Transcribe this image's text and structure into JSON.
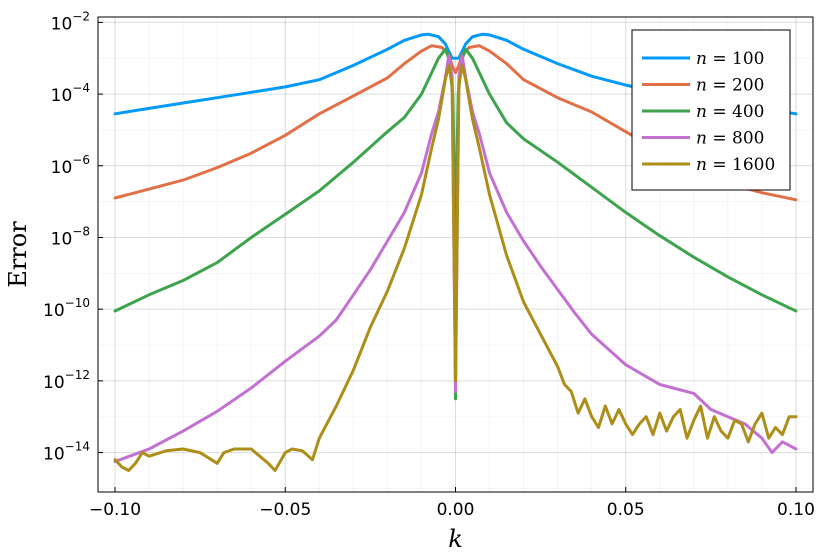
{
  "chart_data": {
    "type": "line",
    "xlabel": "k",
    "ylabel": "Error",
    "yscale": "log10",
    "xlim": [
      -0.105,
      0.105
    ],
    "ylim_log10": [
      -15.1,
      -1.85
    ],
    "x_ticks": [
      -0.1,
      -0.05,
      0.0,
      0.05,
      0.1
    ],
    "x_tick_labels": [
      "−0.10",
      "−0.05",
      "0.00",
      "0.05",
      "0.10"
    ],
    "y_ticks_log10": [
      -2,
      -4,
      -6,
      -8,
      -10,
      -12,
      -14
    ],
    "y_tick_labels": [
      {
        "base": "10",
        "exp": "−2"
      },
      {
        "base": "10",
        "exp": "−4"
      },
      {
        "base": "10",
        "exp": "−6"
      },
      {
        "base": "10",
        "exp": "−8"
      },
      {
        "base": "10",
        "exp": "−10"
      },
      {
        "base": "10",
        "exp": "−12"
      },
      {
        "base": "10",
        "exp": "−14"
      }
    ],
    "grid": true,
    "legend_position": "top-right",
    "series": [
      {
        "name": "n = 100",
        "legend_var": "n",
        "legend_value": "100",
        "color": "#009AFA",
        "x": [
          -0.1,
          -0.09,
          -0.08,
          -0.07,
          -0.06,
          -0.05,
          -0.04,
          -0.03,
          -0.02,
          -0.015,
          -0.01,
          -0.008,
          -0.005,
          -0.003,
          -0.001,
          0.0,
          0.001,
          0.003,
          0.005,
          0.008,
          0.01,
          0.015,
          0.02,
          0.03,
          0.04,
          0.05,
          0.06,
          0.07,
          0.08,
          0.09,
          0.1
        ],
        "log10_y": [
          -4.55,
          -4.4,
          -4.25,
          -4.1,
          -3.95,
          -3.8,
          -3.6,
          -3.2,
          -2.75,
          -2.5,
          -2.35,
          -2.33,
          -2.4,
          -2.6,
          -3.0,
          -3.0,
          -3.0,
          -2.6,
          -2.4,
          -2.33,
          -2.35,
          -2.5,
          -2.75,
          -3.15,
          -3.5,
          -3.75,
          -3.95,
          -4.1,
          -4.25,
          -4.4,
          -4.55
        ]
      },
      {
        "name": "n = 200",
        "legend_var": "n",
        "legend_value": "200",
        "color": "#E26F46",
        "x": [
          -0.1,
          -0.09,
          -0.08,
          -0.07,
          -0.06,
          -0.05,
          -0.04,
          -0.03,
          -0.02,
          -0.015,
          -0.01,
          -0.007,
          -0.004,
          -0.002,
          -0.001,
          0.0,
          0.001,
          0.002,
          0.004,
          0.007,
          0.01,
          0.015,
          0.02,
          0.03,
          0.04,
          0.05,
          0.06,
          0.07,
          0.08,
          0.09,
          0.1
        ],
        "log10_y": [
          -6.9,
          -6.65,
          -6.4,
          -6.05,
          -5.65,
          -5.15,
          -4.55,
          -4.05,
          -3.55,
          -3.15,
          -2.8,
          -2.65,
          -2.7,
          -2.9,
          -3.2,
          -3.4,
          -3.2,
          -2.9,
          -2.7,
          -2.65,
          -2.8,
          -3.15,
          -3.6,
          -4.1,
          -4.5,
          -5.05,
          -5.6,
          -6.1,
          -6.5,
          -6.75,
          -6.95
        ]
      },
      {
        "name": "n = 400",
        "legend_var": "n",
        "legend_value": "400",
        "color": "#3DA44D",
        "x": [
          -0.1,
          -0.09,
          -0.08,
          -0.07,
          -0.06,
          -0.05,
          -0.04,
          -0.03,
          -0.02,
          -0.015,
          -0.01,
          -0.007,
          -0.005,
          -0.003,
          -0.002,
          -0.0008,
          -0.0003,
          0.0,
          0.0003,
          0.0008,
          0.002,
          0.003,
          0.005,
          0.007,
          0.01,
          0.015,
          0.02,
          0.03,
          0.04,
          0.05,
          0.06,
          0.07,
          0.08,
          0.09,
          0.1
        ],
        "log10_y": [
          -10.05,
          -9.6,
          -9.2,
          -8.7,
          -8.0,
          -7.35,
          -6.7,
          -5.9,
          -5.05,
          -4.65,
          -4.0,
          -3.4,
          -3.0,
          -2.75,
          -3.0,
          -4.0,
          -6.5,
          -12.5,
          -6.5,
          -4.0,
          -3.0,
          -2.75,
          -3.0,
          -3.4,
          -4.0,
          -4.8,
          -5.25,
          -5.9,
          -6.6,
          -7.3,
          -7.95,
          -8.55,
          -9.1,
          -9.6,
          -10.05
        ]
      },
      {
        "name": "n = 800",
        "legend_var": "n",
        "legend_value": "800",
        "color": "#C271D2",
        "x": [
          -0.1,
          -0.09,
          -0.08,
          -0.07,
          -0.06,
          -0.05,
          -0.04,
          -0.035,
          -0.03,
          -0.025,
          -0.02,
          -0.015,
          -0.01,
          -0.007,
          -0.005,
          -0.003,
          -0.002,
          -0.001,
          0.0,
          0.001,
          0.002,
          0.003,
          0.005,
          0.007,
          0.01,
          0.015,
          0.02,
          0.025,
          0.03,
          0.035,
          0.04,
          0.05,
          0.06,
          0.07,
          0.075,
          0.08,
          0.085,
          0.09,
          0.093,
          0.096,
          0.1
        ],
        "log10_y": [
          -14.25,
          -13.9,
          -13.4,
          -12.85,
          -12.2,
          -11.45,
          -10.75,
          -10.3,
          -9.6,
          -8.9,
          -8.1,
          -7.3,
          -6.2,
          -5.1,
          -4.5,
          -3.55,
          -2.95,
          -3.5,
          -12.3,
          -3.5,
          -2.95,
          -3.55,
          -4.5,
          -5.1,
          -6.2,
          -7.3,
          -8.1,
          -8.8,
          -9.45,
          -10.1,
          -10.7,
          -11.55,
          -12.1,
          -12.35,
          -12.8,
          -13.0,
          -13.2,
          -13.6,
          -14.0,
          -13.7,
          -13.9
        ]
      },
      {
        "name": "n = 1600",
        "legend_var": "n",
        "legend_value": "1600",
        "color": "#AC8E18",
        "x": [
          -0.1,
          -0.098,
          -0.096,
          -0.094,
          -0.092,
          -0.09,
          -0.085,
          -0.08,
          -0.075,
          -0.07,
          -0.068,
          -0.065,
          -0.06,
          -0.055,
          -0.053,
          -0.05,
          -0.048,
          -0.045,
          -0.042,
          -0.04,
          -0.035,
          -0.03,
          -0.025,
          -0.02,
          -0.015,
          -0.01,
          -0.007,
          -0.005,
          -0.003,
          -0.002,
          -0.001,
          0.0,
          0.001,
          0.002,
          0.003,
          0.005,
          0.007,
          0.01,
          0.015,
          0.02,
          0.025,
          0.03,
          0.032,
          0.034,
          0.036,
          0.038,
          0.04,
          0.042,
          0.044,
          0.046,
          0.048,
          0.05,
          0.052,
          0.054,
          0.056,
          0.058,
          0.06,
          0.062,
          0.064,
          0.066,
          0.068,
          0.07,
          0.072,
          0.074,
          0.076,
          0.078,
          0.08,
          0.082,
          0.084,
          0.086,
          0.088,
          0.09,
          0.092,
          0.094,
          0.096,
          0.098,
          0.1
        ],
        "log10_y": [
          -14.2,
          -14.4,
          -14.5,
          -14.3,
          -14.0,
          -14.1,
          -13.95,
          -13.9,
          -14.0,
          -14.3,
          -14.0,
          -13.9,
          -13.9,
          -14.3,
          -14.5,
          -14.0,
          -13.9,
          -13.95,
          -14.2,
          -13.6,
          -12.7,
          -11.7,
          -10.5,
          -9.5,
          -8.3,
          -6.8,
          -5.5,
          -4.7,
          -3.6,
          -3.2,
          -3.7,
          -12.0,
          -3.7,
          -3.2,
          -3.6,
          -4.7,
          -5.5,
          -6.8,
          -8.5,
          -9.8,
          -10.7,
          -11.6,
          -12.1,
          -12.3,
          -12.9,
          -12.5,
          -13.0,
          -13.3,
          -12.7,
          -13.2,
          -12.8,
          -13.2,
          -13.5,
          -13.2,
          -13.0,
          -13.5,
          -12.9,
          -13.4,
          -13.0,
          -12.8,
          -13.6,
          -13.1,
          -12.7,
          -13.6,
          -13.0,
          -13.4,
          -13.6,
          -13.1,
          -13.2,
          -13.7,
          -13.2,
          -12.9,
          -13.6,
          -13.3,
          -13.5,
          -13.0,
          -13.0
        ]
      }
    ]
  }
}
